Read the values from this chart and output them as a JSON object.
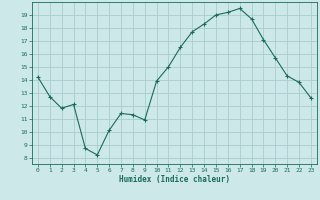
{
  "x": [
    0,
    1,
    2,
    3,
    4,
    5,
    6,
    7,
    8,
    9,
    10,
    11,
    12,
    13,
    14,
    15,
    16,
    17,
    18,
    19,
    20,
    21,
    22,
    23
  ],
  "y": [
    14.2,
    12.7,
    11.8,
    12.1,
    8.7,
    8.2,
    10.1,
    11.4,
    11.3,
    10.9,
    13.9,
    15.0,
    16.5,
    17.7,
    18.3,
    19.0,
    19.2,
    19.5,
    18.7,
    17.1,
    15.7,
    14.3,
    13.8,
    12.6
  ],
  "xlabel": "Humidex (Indice chaleur)",
  "ylim": [
    7.5,
    20
  ],
  "xlim": [
    -0.5,
    23.5
  ],
  "yticks": [
    8,
    9,
    10,
    11,
    12,
    13,
    14,
    15,
    16,
    17,
    18,
    19
  ],
  "xticks": [
    0,
    1,
    2,
    3,
    4,
    5,
    6,
    7,
    8,
    9,
    10,
    11,
    12,
    13,
    14,
    15,
    16,
    17,
    18,
    19,
    20,
    21,
    22,
    23
  ],
  "xtick_labels": [
    "0",
    "1",
    "2",
    "3",
    "4",
    "5",
    "6",
    "7",
    "8",
    "9",
    "10",
    "11",
    "12",
    "13",
    "14",
    "15",
    "16",
    "17",
    "18",
    "19",
    "20",
    "21",
    "22",
    "23"
  ],
  "line_color": "#1a6b5a",
  "marker": "+",
  "bg_color": "#cce8e8",
  "grid_color": "#aacccc",
  "tick_color": "#1a6b5a"
}
